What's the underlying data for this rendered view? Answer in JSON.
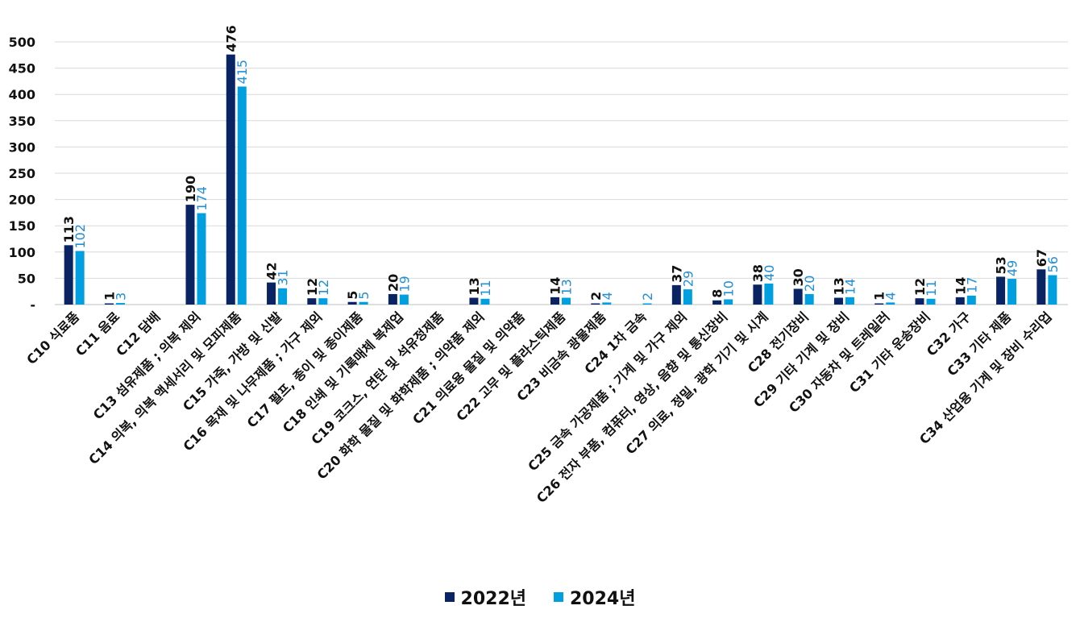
{
  "chart_data": {
    "type": "bar",
    "categories": [
      "C10 식료품",
      "C11 음료",
      "C12 담배",
      "C13 섬유제품 ; 의복 제외",
      "C14 의복, 의복 액세서리 및 모피제품",
      "C15 가죽, 가방 및 신발",
      "C16 목재 및 나무제품 ; 가구 제외",
      "C17 펄프, 종이 및 종이제품",
      "C18 인쇄 및 기록매체 복제업",
      "C19 코크스, 연탄 및 석유정제품",
      "C20 화학 물질 및 화학제품 ; 의약품 제외",
      "C21 의료용 물질 및 의약품",
      "C22 고무 및 플라스틱제품",
      "C23 비금속 광물제품",
      "C24 1차 금속",
      "C25 금속 가공제품 ; 기계 및 가구 제외",
      "C26 전자 부품, 컴퓨터, 영상, 음향 및 통신장비",
      "C27 의료, 정밀, 광학 기기 및 시계",
      "C28 전기장비",
      "C29 기타 기계 및 장비",
      "C30 자동차 및 트레일러",
      "C31 기타 운송장비",
      "C32 가구",
      "C33 기타 제품",
      "C34 산업용 기계 및 장비 수리업"
    ],
    "series": [
      {
        "name": "2022년",
        "color": "#0a2463",
        "values": [
          113,
          1,
          null,
          190,
          476,
          42,
          12,
          5,
          20,
          null,
          13,
          null,
          14,
          2,
          null,
          37,
          8,
          38,
          30,
          13,
          1,
          12,
          14,
          53,
          67
        ]
      },
      {
        "name": "2024년",
        "color": "#00a0e0",
        "values": [
          102,
          3,
          null,
          174,
          415,
          31,
          12,
          5,
          19,
          null,
          11,
          null,
          13,
          4,
          2,
          29,
          10,
          40,
          20,
          14,
          4,
          11,
          17,
          49,
          56
        ]
      }
    ],
    "y_ticks": [
      "-",
      "50",
      "100",
      "150",
      "200",
      "250",
      "300",
      "350",
      "400",
      "450",
      "500"
    ],
    "ylim": [
      0,
      500
    ],
    "grid": true,
    "legend_position": "bottom"
  }
}
